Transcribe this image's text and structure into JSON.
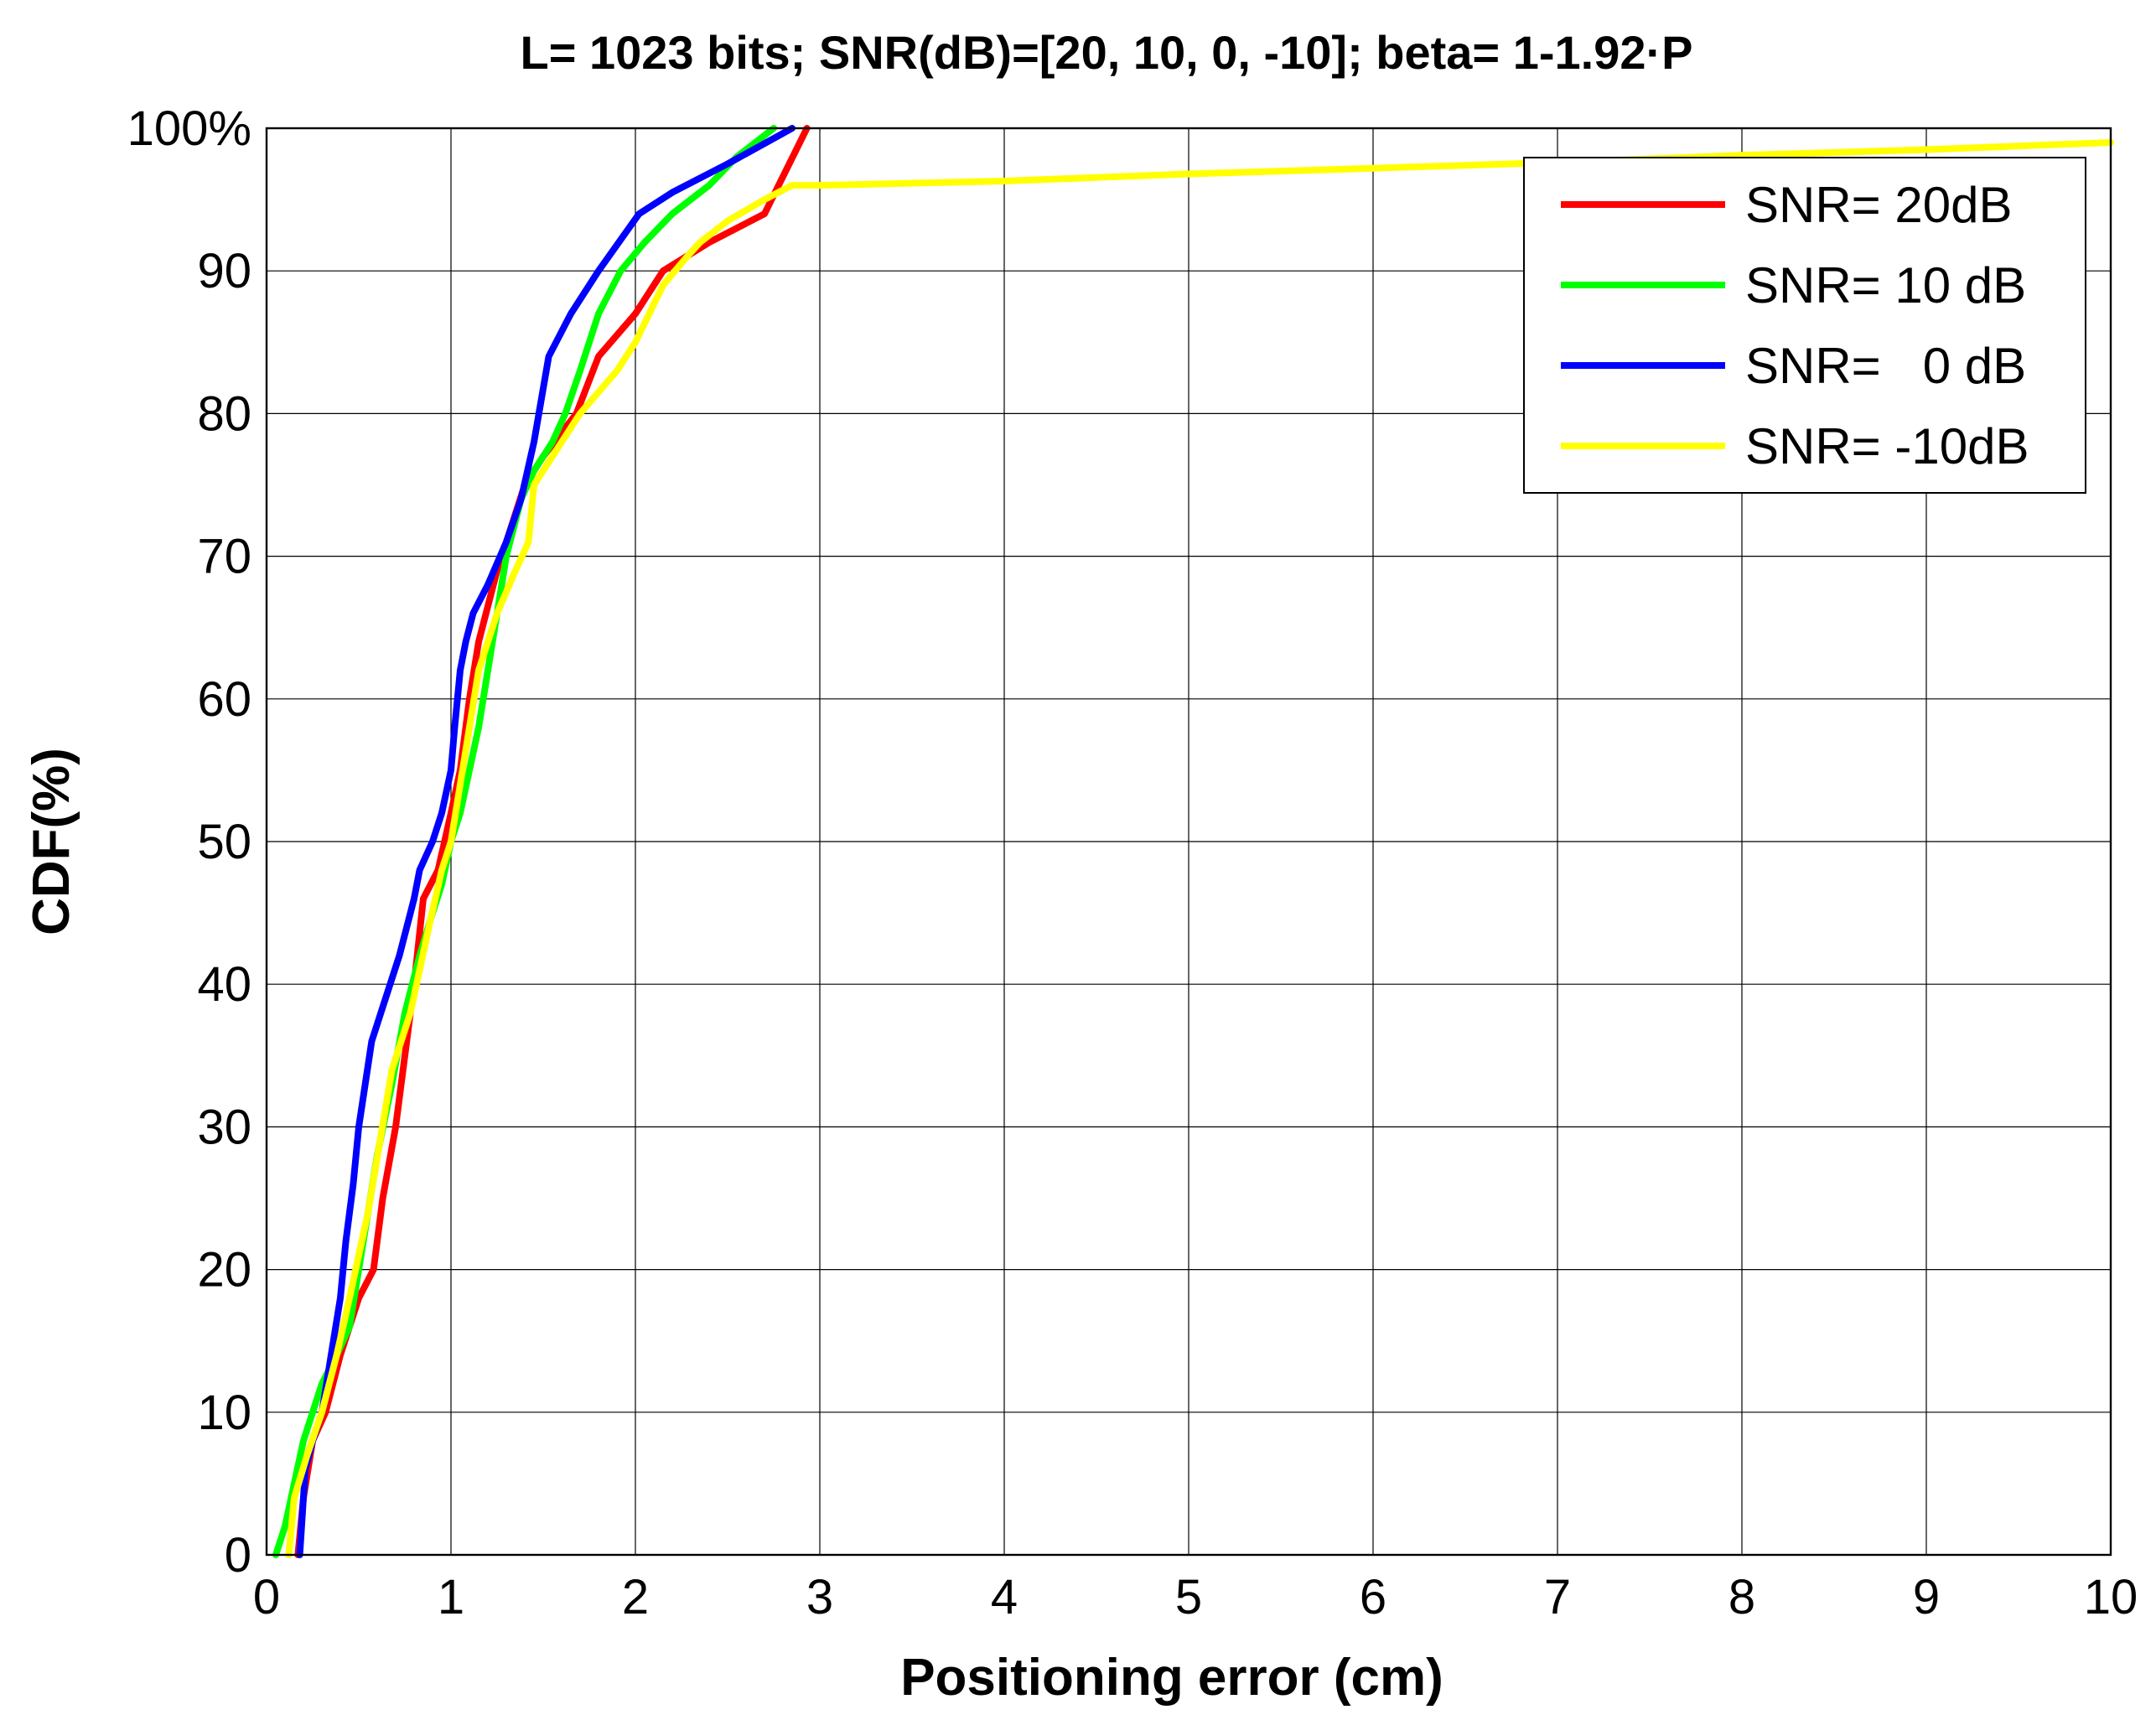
{
  "chart_data": {
    "type": "line",
    "title": "L= 1023 bits; SNR(dB)=[20, 10, 0, -10]; beta= 1-1.92·P",
    "xlabel": "Positioning error (cm)",
    "ylabel": "CDF(%)",
    "xlim": [
      0,
      10
    ],
    "ylim": [
      0,
      100
    ],
    "xticks": [
      0,
      1,
      2,
      3,
      4,
      5,
      6,
      7,
      8,
      9,
      10
    ],
    "yticks": [
      0,
      10,
      20,
      30,
      40,
      50,
      60,
      70,
      80,
      90,
      100
    ],
    "xtick_labels": [
      "0",
      "1",
      "2",
      "3",
      "4",
      "5",
      "6",
      "7",
      "8",
      "9",
      "10"
    ],
    "ytick_labels": [
      "0",
      "10",
      "20",
      "30",
      "40",
      "50",
      "60",
      "70",
      "80",
      "90",
      "100%"
    ],
    "grid": true,
    "legend_position": "top-right",
    "series": [
      {
        "name": "SNR= 20dB",
        "color": "#ff0000",
        "x": [
          0.17,
          0.2,
          0.25,
          0.32,
          0.4,
          0.5,
          0.58,
          0.63,
          0.7,
          0.75,
          0.8,
          0.85,
          0.93,
          1.0,
          1.05,
          1.1,
          1.15,
          1.25,
          1.3,
          1.4,
          1.5,
          1.62,
          1.68,
          1.8,
          2.0,
          2.15,
          2.4,
          2.7,
          2.93
        ],
        "y": [
          0,
          4,
          8,
          10,
          14,
          18,
          20,
          25,
          30,
          35,
          40,
          46,
          48,
          52,
          55,
          60,
          64,
          69,
          71,
          75,
          77,
          79,
          80,
          84,
          87,
          90,
          92,
          94,
          100
        ]
      },
      {
        "name": "SNR= 10 dB",
        "color": "#00ff00",
        "x": [
          0.05,
          0.1,
          0.15,
          0.2,
          0.25,
          0.3,
          0.38,
          0.45,
          0.5,
          0.55,
          0.6,
          0.68,
          0.75,
          0.83,
          0.9,
          0.95,
          1.0,
          1.05,
          1.1,
          1.15,
          1.2,
          1.25,
          1.3,
          1.38,
          1.45,
          1.55,
          1.62,
          1.7,
          1.8,
          1.92,
          2.05,
          2.2,
          2.4,
          2.55,
          2.75
        ],
        "y": [
          0,
          2,
          5,
          8,
          10,
          12,
          14,
          16,
          20,
          24,
          28,
          33,
          38,
          42,
          45,
          47,
          50,
          52,
          55,
          58,
          62,
          66,
          70,
          74,
          76,
          78,
          80,
          83,
          87,
          90,
          92,
          94,
          96,
          98,
          100
        ]
      },
      {
        "name": "SNR=   0 dB",
        "color": "#0000ff",
        "x": [
          0.18,
          0.19,
          0.2,
          0.21,
          0.25,
          0.3,
          0.35,
          0.4,
          0.43,
          0.47,
          0.5,
          0.57,
          0.62,
          0.72,
          0.8,
          0.83,
          0.9,
          0.95,
          1.0,
          1.02,
          1.05,
          1.08,
          1.12,
          1.2,
          1.3,
          1.38,
          1.45,
          1.53,
          1.65,
          1.8,
          2.02,
          2.2,
          2.5,
          2.85
        ],
        "y": [
          0,
          2,
          4,
          6,
          8,
          10,
          14,
          18,
          22,
          26,
          30,
          36,
          38,
          42,
          46,
          48,
          50,
          52,
          55,
          58,
          62,
          64,
          66,
          68,
          71,
          74,
          78,
          84,
          87,
          90,
          94,
          95.5,
          97.5,
          100
        ]
      },
      {
        "name": "SNR= -10dB",
        "color": "#ffff00",
        "x": [
          0.12,
          0.15,
          0.22,
          0.3,
          0.38,
          0.45,
          0.55,
          0.68,
          0.78,
          0.88,
          0.95,
          1.0,
          1.05,
          1.1,
          1.15,
          1.25,
          1.35,
          1.42,
          1.45,
          1.55,
          1.7,
          1.9,
          2.0,
          2.15,
          2.28,
          2.35,
          2.5,
          2.7,
          2.85,
          3.0,
          4.0,
          5.0,
          6.0,
          7.0,
          8.0,
          9.0,
          10.0
        ],
        "y": [
          0,
          4,
          7,
          10,
          14,
          18,
          24,
          34,
          38,
          44,
          48,
          50,
          54,
          58,
          62,
          66,
          69,
          71,
          75,
          77,
          80,
          83,
          85,
          89,
          91,
          92,
          93.5,
          95,
          96,
          96,
          96.3,
          96.8,
          97.2,
          97.6,
          98.1,
          98.5,
          99
        ]
      }
    ]
  }
}
